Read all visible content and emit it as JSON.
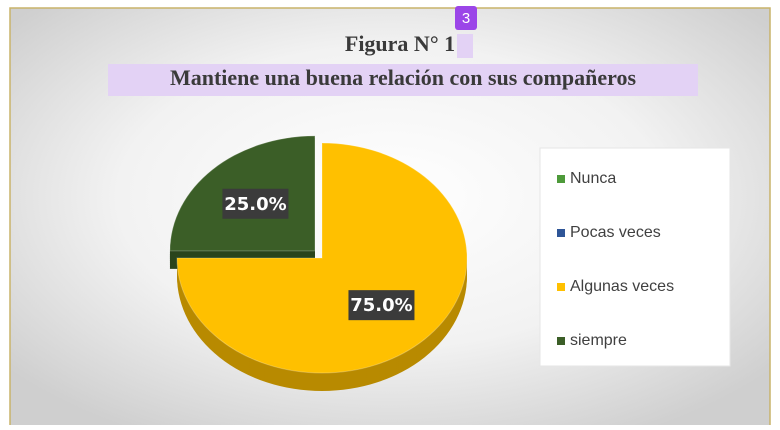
{
  "chart_data": {
    "type": "pie",
    "title": "Figura N° 1",
    "subtitle": "Mantiene una buena relación con sus compañeros",
    "annotation": "3",
    "categories": [
      "Nunca",
      "Pocas veces",
      "Algunas veces",
      "siempre"
    ],
    "values": [
      0,
      0,
      75,
      25
    ],
    "value_labels": [
      null,
      null,
      "75.0%",
      "25.0%"
    ],
    "colors": [
      "#4e9a3a",
      "#2e5597",
      "#ffc000",
      "#3b5e27"
    ],
    "legend": "right"
  }
}
